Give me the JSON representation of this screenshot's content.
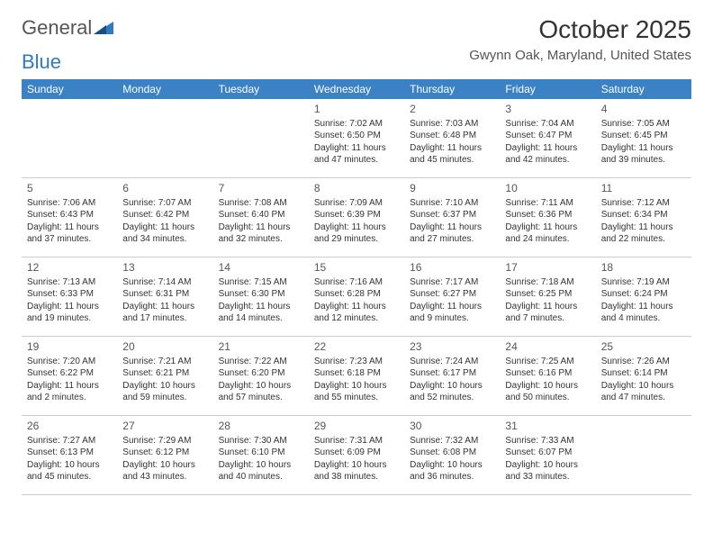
{
  "logo": {
    "part1": "General",
    "part2": "Blue"
  },
  "title": "October 2025",
  "location": "Gwynn Oak, Maryland, United States",
  "headerColor": "#3b82c4",
  "dayNames": [
    "Sunday",
    "Monday",
    "Tuesday",
    "Wednesday",
    "Thursday",
    "Friday",
    "Saturday"
  ],
  "weeks": [
    [
      null,
      null,
      null,
      {
        "n": "1",
        "sr": "7:02 AM",
        "ss": "6:50 PM",
        "dl": "11 hours and 47 minutes."
      },
      {
        "n": "2",
        "sr": "7:03 AM",
        "ss": "6:48 PM",
        "dl": "11 hours and 45 minutes."
      },
      {
        "n": "3",
        "sr": "7:04 AM",
        "ss": "6:47 PM",
        "dl": "11 hours and 42 minutes."
      },
      {
        "n": "4",
        "sr": "7:05 AM",
        "ss": "6:45 PM",
        "dl": "11 hours and 39 minutes."
      }
    ],
    [
      {
        "n": "5",
        "sr": "7:06 AM",
        "ss": "6:43 PM",
        "dl": "11 hours and 37 minutes."
      },
      {
        "n": "6",
        "sr": "7:07 AM",
        "ss": "6:42 PM",
        "dl": "11 hours and 34 minutes."
      },
      {
        "n": "7",
        "sr": "7:08 AM",
        "ss": "6:40 PM",
        "dl": "11 hours and 32 minutes."
      },
      {
        "n": "8",
        "sr": "7:09 AM",
        "ss": "6:39 PM",
        "dl": "11 hours and 29 minutes."
      },
      {
        "n": "9",
        "sr": "7:10 AM",
        "ss": "6:37 PM",
        "dl": "11 hours and 27 minutes."
      },
      {
        "n": "10",
        "sr": "7:11 AM",
        "ss": "6:36 PM",
        "dl": "11 hours and 24 minutes."
      },
      {
        "n": "11",
        "sr": "7:12 AM",
        "ss": "6:34 PM",
        "dl": "11 hours and 22 minutes."
      }
    ],
    [
      {
        "n": "12",
        "sr": "7:13 AM",
        "ss": "6:33 PM",
        "dl": "11 hours and 19 minutes."
      },
      {
        "n": "13",
        "sr": "7:14 AM",
        "ss": "6:31 PM",
        "dl": "11 hours and 17 minutes."
      },
      {
        "n": "14",
        "sr": "7:15 AM",
        "ss": "6:30 PM",
        "dl": "11 hours and 14 minutes."
      },
      {
        "n": "15",
        "sr": "7:16 AM",
        "ss": "6:28 PM",
        "dl": "11 hours and 12 minutes."
      },
      {
        "n": "16",
        "sr": "7:17 AM",
        "ss": "6:27 PM",
        "dl": "11 hours and 9 minutes."
      },
      {
        "n": "17",
        "sr": "7:18 AM",
        "ss": "6:25 PM",
        "dl": "11 hours and 7 minutes."
      },
      {
        "n": "18",
        "sr": "7:19 AM",
        "ss": "6:24 PM",
        "dl": "11 hours and 4 minutes."
      }
    ],
    [
      {
        "n": "19",
        "sr": "7:20 AM",
        "ss": "6:22 PM",
        "dl": "11 hours and 2 minutes."
      },
      {
        "n": "20",
        "sr": "7:21 AM",
        "ss": "6:21 PM",
        "dl": "10 hours and 59 minutes."
      },
      {
        "n": "21",
        "sr": "7:22 AM",
        "ss": "6:20 PM",
        "dl": "10 hours and 57 minutes."
      },
      {
        "n": "22",
        "sr": "7:23 AM",
        "ss": "6:18 PM",
        "dl": "10 hours and 55 minutes."
      },
      {
        "n": "23",
        "sr": "7:24 AM",
        "ss": "6:17 PM",
        "dl": "10 hours and 52 minutes."
      },
      {
        "n": "24",
        "sr": "7:25 AM",
        "ss": "6:16 PM",
        "dl": "10 hours and 50 minutes."
      },
      {
        "n": "25",
        "sr": "7:26 AM",
        "ss": "6:14 PM",
        "dl": "10 hours and 47 minutes."
      }
    ],
    [
      {
        "n": "26",
        "sr": "7:27 AM",
        "ss": "6:13 PM",
        "dl": "10 hours and 45 minutes."
      },
      {
        "n": "27",
        "sr": "7:29 AM",
        "ss": "6:12 PM",
        "dl": "10 hours and 43 minutes."
      },
      {
        "n": "28",
        "sr": "7:30 AM",
        "ss": "6:10 PM",
        "dl": "10 hours and 40 minutes."
      },
      {
        "n": "29",
        "sr": "7:31 AM",
        "ss": "6:09 PM",
        "dl": "10 hours and 38 minutes."
      },
      {
        "n": "30",
        "sr": "7:32 AM",
        "ss": "6:08 PM",
        "dl": "10 hours and 36 minutes."
      },
      {
        "n": "31",
        "sr": "7:33 AM",
        "ss": "6:07 PM",
        "dl": "10 hours and 33 minutes."
      },
      null
    ]
  ],
  "labels": {
    "sunrise": "Sunrise:",
    "sunset": "Sunset:",
    "daylight": "Daylight:"
  }
}
